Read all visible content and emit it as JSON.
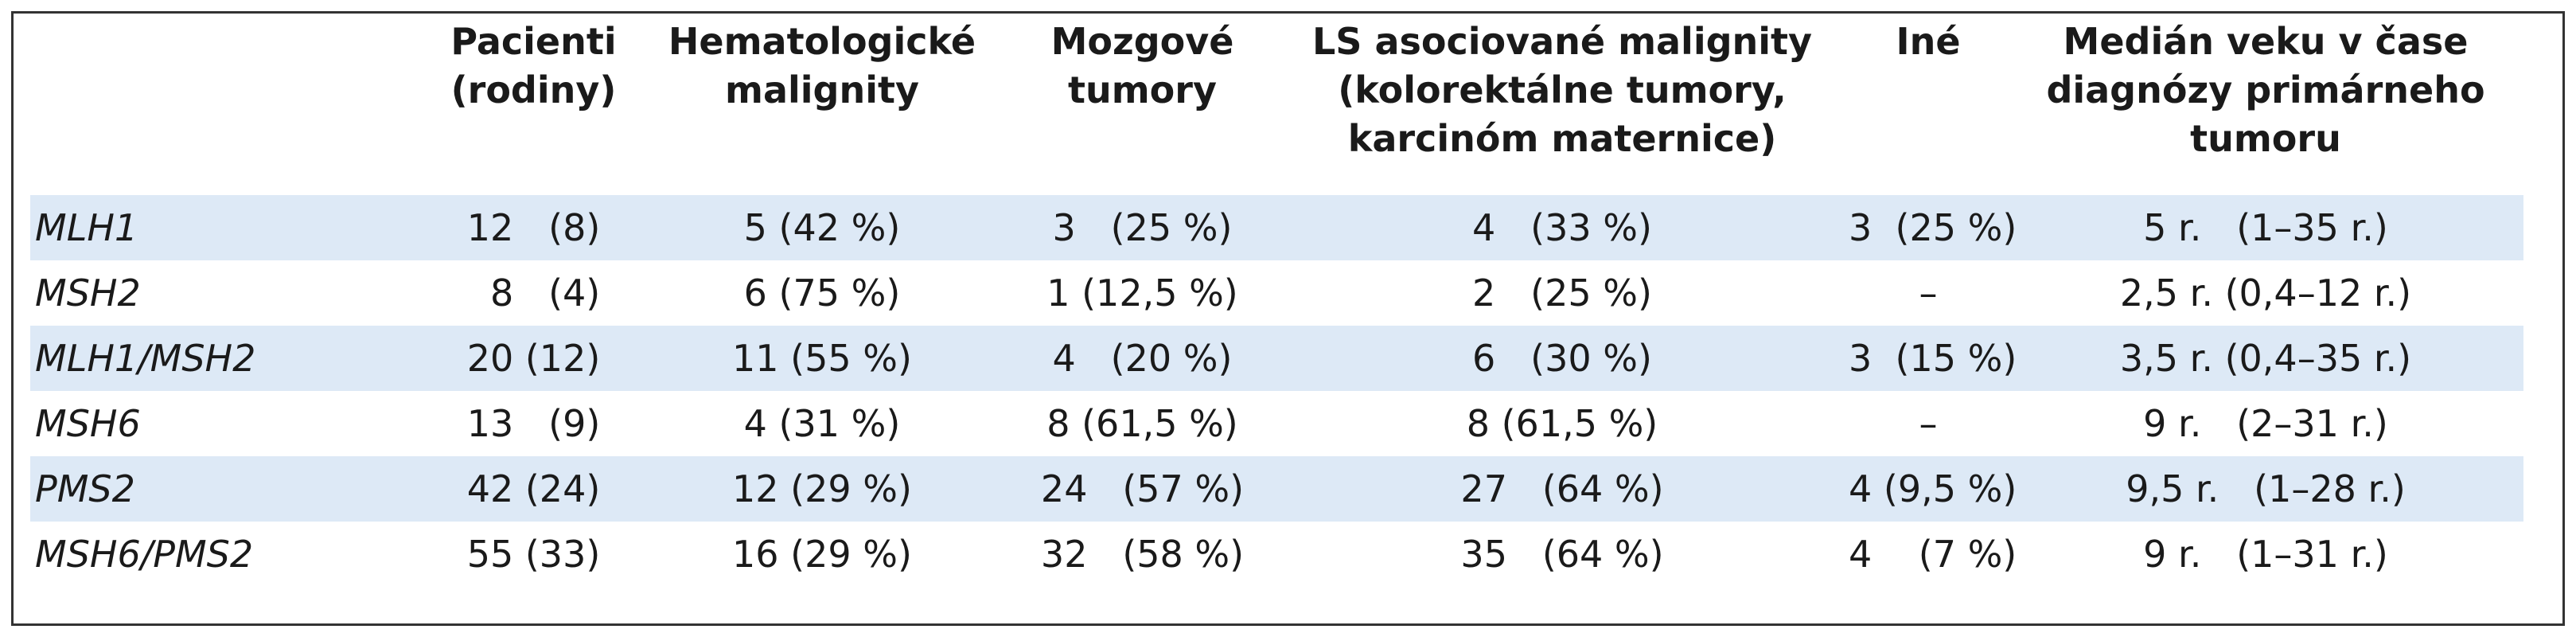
{
  "header": {
    "gene": "",
    "patients": "Pacienti (rodiny)",
    "hematologic": "Hematologické malignity",
    "brain": "Mozgové tumory",
    "ls": "LS asociované malignity (kolorektálne tumory, karcinóm maternice)",
    "other": "Iné",
    "median_age": "Medián veku v čase diagnózy primárneho tumoru"
  },
  "rows": [
    {
      "gene": "MLH1",
      "patients": "12   (8)",
      "hematologic": "5 (42 %)",
      "brain": "3   (25 %)",
      "ls": "4   (33 %)",
      "other": "3  (25 %)",
      "median_age": "5 r.   (1–35 r.)",
      "shaded": true
    },
    {
      "gene": "MSH2",
      "patients": "  8   (4)",
      "hematologic": "6 (75 %)",
      "brain": "1 (12,5 %)",
      "ls": "2   (25 %)",
      "other": "–",
      "median_age": "2,5 r. (0,4–12 r.)",
      "shaded": false
    },
    {
      "gene": "MLH1/MSH2",
      "patients": "20 (12)",
      "hematologic": "11 (55 %)",
      "brain": "4   (20 %)",
      "ls": "6   (30 %)",
      "other": "3  (15 %)",
      "median_age": "3,5 r. (0,4–35 r.)",
      "shaded": true
    },
    {
      "gene": "MSH6",
      "patients": "13   (9)",
      "hematologic": "4 (31 %)",
      "brain": "8 (61,5 %)",
      "ls": "8 (61,5 %)",
      "other": "–",
      "median_age": "9 r.   (2–31 r.)",
      "shaded": false
    },
    {
      "gene": "PMS2",
      "patients": "42 (24)",
      "hematologic": "12 (29 %)",
      "brain": "24   (57 %)",
      "ls": "27   (64 %)",
      "other": "4 (9,5 %)",
      "median_age": "9,5 r.   (1–28 r.)",
      "shaded": true
    },
    {
      "gene": "MSH6/PMS2",
      "patients": "55 (33)",
      "hematologic": "16 (29 %)",
      "brain": "32   (58 %)",
      "ls": "35   (64 %)",
      "other": "4    (7 %)",
      "median_age": "9 r.   (1–31 r.)",
      "shaded": false
    }
  ]
}
